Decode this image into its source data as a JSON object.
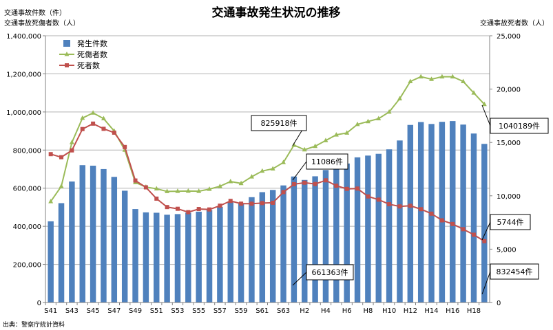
{
  "chart_data": {
    "type": "bar+line",
    "title": "交通事故発生状況の推移",
    "y_left_label_1": "交通事故件数（件）",
    "y_left_label_2": "交通事故死傷者数（人）",
    "y_right_label": "交通事故死者数（人）",
    "source_note": "出典：警察庁統計資料",
    "y_left_range": [
      0,
      1400000
    ],
    "y_left_ticks": [
      "0",
      "200,000",
      "400,000",
      "600,000",
      "800,000",
      "1,000,000",
      "1,200,000",
      "1,400,000"
    ],
    "y_right_range": [
      0,
      25000
    ],
    "y_right_ticks": [
      "0",
      "5,000",
      "10,000",
      "15,000",
      "20,000",
      "25,000"
    ],
    "grid": true,
    "legend_position": "top-left",
    "categories": [
      "S41",
      "S42",
      "S43",
      "S44",
      "S45",
      "S46",
      "S47",
      "S48",
      "S49",
      "S50",
      "S51",
      "S52",
      "S53",
      "S54",
      "S55",
      "S56",
      "S57",
      "S58",
      "S59",
      "S60",
      "S61",
      "S62",
      "S63",
      "H1",
      "H2",
      "H3",
      "H4",
      "H5",
      "H6",
      "H7",
      "H8",
      "H9",
      "H10",
      "H11",
      "H12",
      "H13",
      "H14",
      "H15",
      "H16",
      "H17",
      "H18",
      "H19"
    ],
    "x_tick_labels": [
      "S41",
      "S43",
      "S45",
      "S47",
      "S49",
      "S51",
      "S53",
      "S55",
      "S57",
      "S59",
      "S61",
      "S63",
      "H2",
      "H4",
      "H6",
      "H8",
      "H10",
      "H12",
      "H14",
      "H16",
      "H18"
    ],
    "series": [
      {
        "name": "発生件数",
        "type": "bar",
        "axis": "left",
        "color": "#4f81bd",
        "values": [
          425944,
          521481,
          635056,
          720880,
          718080,
          700290,
          659283,
          586713,
          490452,
          472938,
          471041,
          460649,
          464037,
          471573,
          476677,
          485578,
          502261,
          526362,
          518642,
          552788,
          579190,
          590723,
          614481,
          661363,
          643097,
          662388,
          695345,
          724675,
          729461,
          761794,
          771085,
          780401,
          803882,
          850371,
          931950,
          947169,
          936950,
          948281,
          952191,
          933828,
          886864,
          832454
        ]
      },
      {
        "name": "死傷者数",
        "type": "line",
        "axis": "left",
        "color": "#9bbb59",
        "marker": "triangle",
        "values": [
          530000,
          610000,
          840000,
          968000,
          995000,
          965000,
          900000,
          800000,
          630000,
          606000,
          597000,
          583000,
          584000,
          585000,
          584000,
          595000,
          610000,
          635000,
          625000,
          660000,
          690000,
          702000,
          735000,
          825918,
          802000,
          820000,
          850000,
          880000,
          890000,
          935000,
          950000,
          965000,
          1000000,
          1070000,
          1160000,
          1185000,
          1172000,
          1185000,
          1185000,
          1160000,
          1100000,
          1040189
        ]
      },
      {
        "name": "死者数",
        "type": "line",
        "axis": "right",
        "color": "#c0504d",
        "marker": "square",
        "values": [
          13904,
          13618,
          14256,
          16257,
          16765,
          16278,
          15918,
          14574,
          11432,
          10792,
          9734,
          8945,
          8783,
          8466,
          8760,
          8719,
          9073,
          9520,
          9262,
          9261,
          9317,
          9347,
          10344,
          11086,
          11227,
          11105,
          11451,
          10945,
          10649,
          10679,
          9942,
          9640,
          9211,
          9006,
          9066,
          8747,
          8326,
          7702,
          7358,
          6871,
          6352,
          5744
        ]
      }
    ],
    "annotations": [
      {
        "text": "825918件"
      },
      {
        "text": "11086件"
      },
      {
        "text": "661363件"
      },
      {
        "text": "1040189件"
      },
      {
        "text": "5744件"
      },
      {
        "text": "832454件"
      }
    ]
  }
}
